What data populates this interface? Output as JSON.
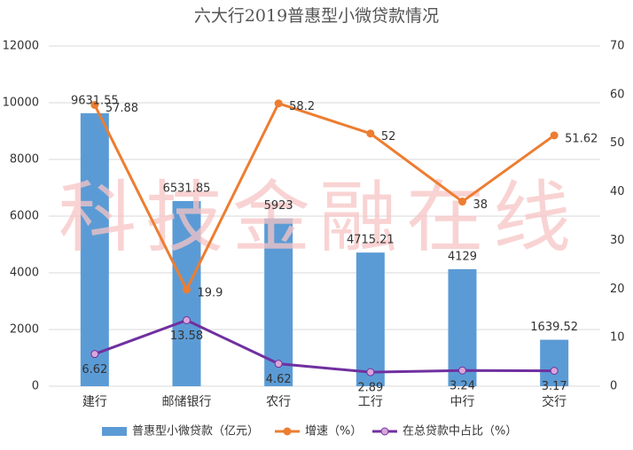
{
  "chart_data": {
    "type": "bar-line",
    "title": "六大行2019普惠型小微贷款情况",
    "watermark": "科技金融在线",
    "categories": [
      "建行",
      "邮储银行",
      "农行",
      "工行",
      "中行",
      "交行"
    ],
    "series": [
      {
        "name": "普惠型小微贷款（亿元）",
        "type": "bar",
        "color": "#5b9bd5",
        "values": [
          9631.55,
          6531.85,
          5923,
          4715.21,
          4129,
          1639.52
        ]
      },
      {
        "name": "增速（%）",
        "type": "line",
        "axis": "y2",
        "color": "#ed7d31",
        "values": [
          57.88,
          19.9,
          58.2,
          52,
          38,
          51.62
        ]
      },
      {
        "name": "在总贷款中占比（%）",
        "type": "line",
        "axis": "y2",
        "color": "#7030a0",
        "values": [
          6.62,
          13.58,
          4.62,
          2.89,
          3.24,
          3.17
        ]
      }
    ],
    "ylim": [
      0,
      12000
    ],
    "yticks": [
      0,
      2000,
      4000,
      6000,
      8000,
      10000,
      12000
    ],
    "y2lim": [
      0,
      70
    ],
    "y2ticks": [
      0,
      10,
      20,
      30,
      40,
      50,
      60,
      70
    ],
    "grid": true,
    "legend": "bottom"
  }
}
